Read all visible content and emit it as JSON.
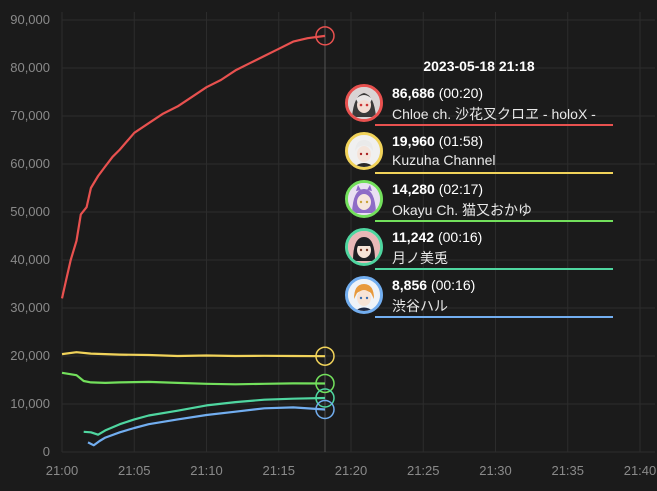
{
  "chart_data": {
    "type": "line",
    "x_start": "21:00",
    "x_ticks": [
      "21:00",
      "21:05",
      "21:10",
      "21:15",
      "21:20",
      "21:25",
      "21:30",
      "21:35",
      "21:40"
    ],
    "xlim_minutes": [
      0,
      42
    ],
    "ylim": [
      0,
      90000
    ],
    "y_ticks": [
      0,
      10000,
      20000,
      30000,
      40000,
      50000,
      60000,
      70000,
      80000,
      90000
    ],
    "y_tick_labels": [
      "0",
      "10,000",
      "20,000",
      "30,000",
      "40,000",
      "50,000",
      "60,000",
      "70,000",
      "80,000",
      "90,000"
    ],
    "grid": true,
    "cursor_minute": 18.2,
    "series": [
      {
        "name": "Chloe ch. 沙花叉クロヱ - holoX -",
        "color": "#e8514f",
        "x": [
          0,
          0.3,
          0.6,
          1.0,
          1.3,
          1.7,
          2.0,
          2.5,
          3.0,
          3.5,
          4.0,
          5.0,
          6.0,
          7.0,
          8.0,
          9.0,
          10.0,
          11.0,
          12.0,
          13.0,
          14.0,
          15.0,
          16.0,
          17.0,
          18.2
        ],
        "values": [
          32000,
          36000,
          40000,
          44000,
          49500,
          51000,
          55000,
          57500,
          59500,
          61500,
          63000,
          66500,
          68500,
          70500,
          72000,
          74000,
          76000,
          77500,
          79500,
          81000,
          82500,
          84000,
          85500,
          86200,
          86686
        ]
      },
      {
        "name": "Kuzuha Channel",
        "color": "#f1d35a",
        "x": [
          0,
          1,
          2,
          4,
          6,
          8,
          10,
          12,
          14,
          16,
          18.2
        ],
        "values": [
          20400,
          20800,
          20500,
          20300,
          20200,
          20000,
          20100,
          20000,
          20050,
          20000,
          19960
        ]
      },
      {
        "name": "Okayu Ch. 猫又おかゆ",
        "color": "#73e05c",
        "x": [
          0,
          1,
          1.5,
          2,
          3,
          4,
          6,
          8,
          10,
          12,
          14,
          16,
          18.2
        ],
        "values": [
          16500,
          16000,
          14800,
          14500,
          14400,
          14500,
          14600,
          14400,
          14200,
          14100,
          14200,
          14300,
          14280
        ]
      },
      {
        "name": "月ノ美兎",
        "color": "#4fd6a0",
        "x": [
          1.5,
          2.0,
          2.5,
          3,
          4,
          5,
          6,
          8,
          10,
          12,
          14,
          16,
          18.2
        ],
        "values": [
          4200,
          4100,
          3600,
          4500,
          5800,
          6800,
          7600,
          8600,
          9700,
          10400,
          10900,
          11100,
          11242
        ]
      },
      {
        "name": "渋谷ハル",
        "color": "#72aef0",
        "x": [
          1.8,
          2.2,
          2.6,
          3,
          4,
          5,
          6,
          8,
          10,
          12,
          14,
          16,
          18.2
        ],
        "values": [
          2000,
          1400,
          2300,
          3000,
          4100,
          5000,
          5800,
          6800,
          7700,
          8400,
          9100,
          9300,
          8856
        ]
      }
    ]
  },
  "tooltip": {
    "time": "2023-05-18 21:18",
    "rows": [
      {
        "value": "86,686",
        "rank": "(00:20)",
        "name": "Chloe ch. 沙花叉クロヱ - holoX -",
        "color": "#e8514f",
        "avatar_icon": "avatar-chloe-icon"
      },
      {
        "value": "19,960",
        "rank": "(01:58)",
        "name": "Kuzuha Channel",
        "color": "#f1d35a",
        "avatar_icon": "avatar-kuzuha-icon"
      },
      {
        "value": "14,280",
        "rank": "(02:17)",
        "name": "Okayu Ch. 猫又おかゆ",
        "color": "#73e05c",
        "avatar_icon": "avatar-okayu-icon"
      },
      {
        "value": "11,242",
        "rank": "(00:16)",
        "name": "月ノ美兎",
        "color": "#4fd6a0",
        "avatar_icon": "avatar-mito-icon"
      },
      {
        "value": "8,856",
        "rank": "(00:16)",
        "name": "渋谷ハル",
        "color": "#72aef0",
        "avatar_icon": "avatar-haru-icon"
      }
    ]
  }
}
